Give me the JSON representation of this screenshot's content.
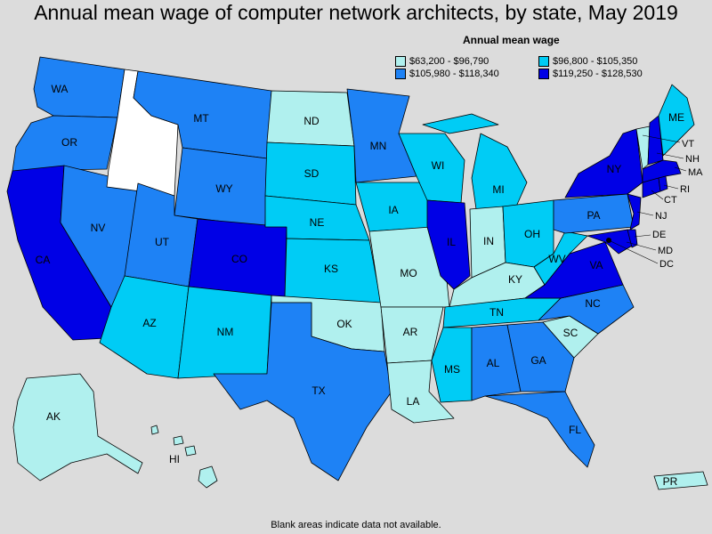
{
  "title": "Annual mean wage of computer network architects, by state, May 2019",
  "legend": {
    "title": "Annual mean wage",
    "items": [
      {
        "label": "$63,200 - $96,790",
        "color": "#b0f0ee"
      },
      {
        "label": "$96,800 - $105,350",
        "color": "#00ccf5"
      },
      {
        "label": "$105,980 - $118,340",
        "color": "#1e82f5"
      },
      {
        "label": "$119,250 - $128,530",
        "color": "#0000e6"
      }
    ]
  },
  "footnote": "Blank areas indicate data not available.",
  "states": {
    "WA": "WA",
    "OR": "OR",
    "CA": "CA",
    "NV": "NV",
    "ID": "",
    "MT": "MT",
    "WY": "WY",
    "UT": "UT",
    "AZ": "AZ",
    "CO": "CO",
    "NM": "NM",
    "ND": "ND",
    "SD": "SD",
    "NE": "NE",
    "KS": "KS",
    "OK": "OK",
    "TX": "TX",
    "MN": "MN",
    "IA": "IA",
    "MO": "MO",
    "AR": "AR",
    "LA": "LA",
    "WI": "WI",
    "IL": "IL",
    "MI": "MI",
    "IN": "IN",
    "OH": "OH",
    "KY": "KY",
    "TN": "TN",
    "MS": "MS",
    "AL": "AL",
    "GA": "GA",
    "FL": "FL",
    "SC": "SC",
    "NC": "NC",
    "VA": "VA",
    "WV": "WV",
    "PA": "PA",
    "NY": "NY",
    "ME": "ME",
    "VT": "VT",
    "NH": "NH",
    "MA": "MA",
    "RI": "RI",
    "CT": "CT",
    "NJ": "NJ",
    "DE": "DE",
    "MD": "MD",
    "DC": "DC",
    "AK": "AK",
    "HI": "HI",
    "PR": "PR"
  }
}
